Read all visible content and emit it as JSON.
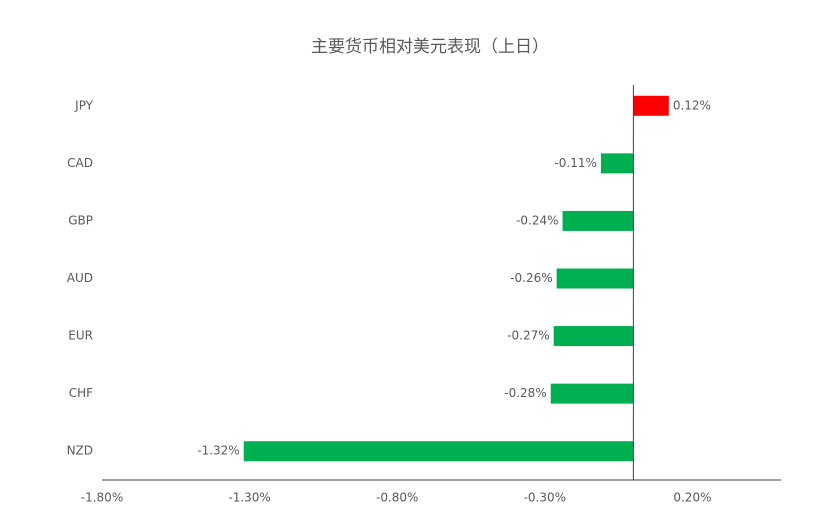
{
  "chart_data": {
    "type": "barh",
    "title": "主要货币相对美元表现（上日）",
    "categories": [
      "JPY",
      "CAD",
      "GBP",
      "AUD",
      "EUR",
      "CHF",
      "NZD"
    ],
    "values": [
      0.12,
      -0.11,
      -0.24,
      -0.26,
      -0.27,
      -0.28,
      -1.32
    ],
    "value_labels": [
      "0.12%",
      "-0.11%",
      "-0.24%",
      "-0.26%",
      "-0.27%",
      "-0.28%",
      "-1.32%"
    ],
    "color_positive": "#ff0000",
    "color_negative": "#00b050",
    "xlim": [
      -1.8,
      0.5
    ],
    "xticks": [
      {
        "value": -1.8,
        "label": "-1.80%"
      },
      {
        "value": -1.3,
        "label": "-1.30%"
      },
      {
        "value": -0.8,
        "label": "-0.80%"
      },
      {
        "value": -0.3,
        "label": "-0.30%"
      },
      {
        "value": 0.2,
        "label": "0.20%"
      }
    ],
    "grid": false
  }
}
